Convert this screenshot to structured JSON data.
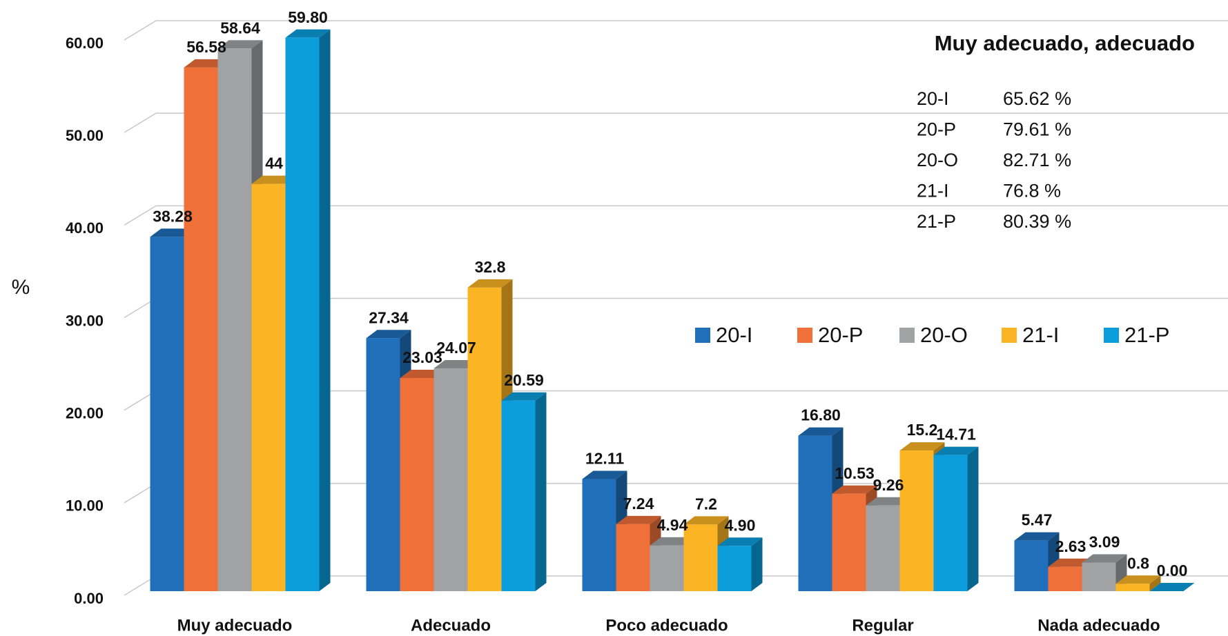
{
  "chart_data": {
    "type": "bar3d",
    "y_label": "%",
    "categories": [
      "Muy adecuado",
      "Adecuado",
      "Poco adecuado",
      "Regular",
      "Nada adecuado"
    ],
    "series": [
      {
        "name": "20-I",
        "color": "#1f6fba",
        "values": [
          38.28,
          27.34,
          12.11,
          16.8,
          5.47
        ],
        "value_labels": [
          "38.28",
          "27.34",
          "12.11",
          "16.80",
          "5.47"
        ]
      },
      {
        "name": "20-P",
        "color": "#f0703a",
        "values": [
          56.58,
          23.03,
          7.24,
          10.53,
          2.63
        ],
        "value_labels": [
          "56.58",
          "23.03",
          "7.24",
          "10.53",
          "2.63"
        ]
      },
      {
        "name": "20-O",
        "color": "#a0a2a4",
        "values": [
          58.64,
          24.07,
          4.94,
          9.26,
          3.09
        ],
        "value_labels": [
          "58.64",
          "24.07",
          "4.94",
          "9.26",
          "3.09"
        ]
      },
      {
        "name": "21-I",
        "color": "#fbb424",
        "values": [
          44,
          32.8,
          7.2,
          15.2,
          0.8
        ],
        "value_labels": [
          "44",
          "32.8",
          "7.2",
          "15.2",
          "0.8"
        ]
      },
      {
        "name": "21-P",
        "color": "#0b9ddc",
        "values": [
          59.8,
          20.59,
          4.9,
          14.71,
          0
        ],
        "value_labels": [
          "59.80",
          "20.59",
          "4.90",
          "14.71",
          "0.00"
        ]
      }
    ],
    "ylim": [
      0,
      60
    ],
    "yticks": [
      {
        "value": 0,
        "label": "0.00"
      },
      {
        "value": 10,
        "label": "10.00"
      },
      {
        "value": 20,
        "label": "20.00"
      },
      {
        "value": 30,
        "label": "30.00"
      },
      {
        "value": 40,
        "label": "40.00"
      },
      {
        "value": 50,
        "label": "50.00"
      },
      {
        "value": 60,
        "label": "60.00"
      }
    ],
    "grid": true,
    "annotation": {
      "title": "Muy adecuado, adecuado",
      "rows": [
        [
          "20-I",
          "65.62 %"
        ],
        [
          "20-P",
          "79.61 %"
        ],
        [
          "20-O",
          "82.71 %"
        ],
        [
          "21-I",
          "76.8 %"
        ],
        [
          "21-P",
          "80.39 %"
        ]
      ]
    }
  }
}
